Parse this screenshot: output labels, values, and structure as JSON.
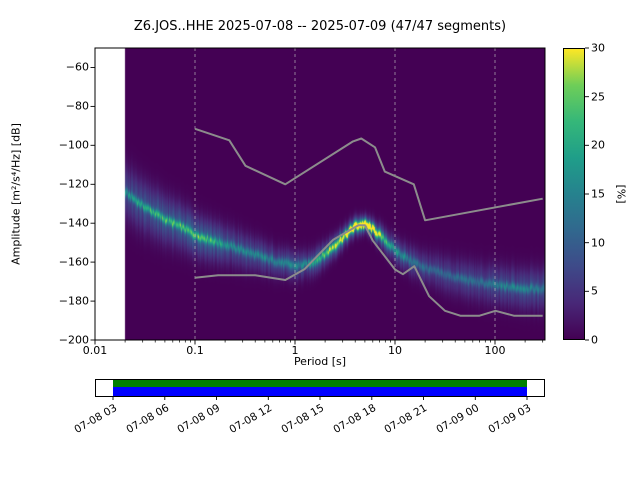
{
  "title": "Z6.JOS..HHE   2025-07-08 -- 2025-07-09  (47/47 segments)",
  "axes": {
    "xlabel": "Period [s]",
    "ylabel": "Amplitude [m²/s⁴/Hz] [dB]",
    "x_tick_labels": [
      "0.01",
      "0.1",
      "1",
      "10",
      "100"
    ],
    "y_tick_labels": [
      "−60",
      "−80",
      "−100",
      "−120",
      "−140",
      "−160",
      "−180",
      "−200"
    ]
  },
  "colorbar": {
    "label": "[%]",
    "tick_labels": [
      "0",
      "5",
      "10",
      "15",
      "20",
      "25",
      "30"
    ]
  },
  "timeline": {
    "labels": [
      "07-08 03",
      "07-08 06",
      "07-08 09",
      "07-08 12",
      "07-08 15",
      "07-08 18",
      "07-08 21",
      "07-09 00",
      "07-09 03"
    ],
    "coverage_start_frac": 0.04,
    "coverage_end_frac": 0.96,
    "color_top": "#008000",
    "color_bottom": "#0000ff"
  },
  "chart_data": {
    "type": "heatmap",
    "title": "Z6.JOS..HHE   2025-07-08 -- 2025-07-09  (47/47 segments)",
    "xlabel": "Period [s]",
    "ylabel": "Amplitude [m^2/s^4/Hz] [dB]",
    "xscale": "log",
    "xlim": [
      0.01,
      316
    ],
    "ylim": [
      -200,
      -50
    ],
    "x_major_ticks": [
      0.01,
      0.1,
      1,
      10,
      100
    ],
    "y_major_ticks": [
      -60,
      -80,
      -100,
      -120,
      -140,
      -160,
      -180,
      -200
    ],
    "grid_periods": [
      0.1,
      1,
      10,
      100
    ],
    "data_period_min": 0.02,
    "colorbar": {
      "label": "[%]",
      "min": 0,
      "max": 30,
      "ticks": [
        0,
        5,
        10,
        15,
        20,
        25,
        30
      ],
      "colormap": "viridis"
    },
    "psd_mode_curve_db": [
      [
        0.02,
        -124
      ],
      [
        0.03,
        -131
      ],
      [
        0.05,
        -138
      ],
      [
        0.08,
        -143
      ],
      [
        0.1,
        -146
      ],
      [
        0.15,
        -149
      ],
      [
        0.2,
        -151
      ],
      [
        0.3,
        -154
      ],
      [
        0.5,
        -158
      ],
      [
        0.7,
        -160
      ],
      [
        1.0,
        -162
      ],
      [
        1.4,
        -161
      ],
      [
        2.0,
        -156
      ],
      [
        2.8,
        -149
      ],
      [
        4.0,
        -141.5
      ],
      [
        5.0,
        -140.5
      ],
      [
        6.0,
        -143
      ],
      [
        8.0,
        -149
      ],
      [
        10,
        -154
      ],
      [
        14,
        -159
      ],
      [
        20,
        -163
      ],
      [
        30,
        -166
      ],
      [
        50,
        -169
      ],
      [
        80,
        -171
      ],
      [
        120,
        -172.5
      ],
      [
        200,
        -173.5
      ],
      [
        316,
        -174
      ]
    ],
    "psd_sigma_curve_db": [
      [
        0.02,
        9
      ],
      [
        0.05,
        8
      ],
      [
        0.1,
        7
      ],
      [
        0.3,
        6
      ],
      [
        0.7,
        5
      ],
      [
        1.5,
        4.5
      ],
      [
        3,
        3.5
      ],
      [
        5,
        3
      ],
      [
        8,
        4
      ],
      [
        15,
        5
      ],
      [
        30,
        6
      ],
      [
        80,
        6.5
      ],
      [
        316,
        7
      ]
    ],
    "psd_broad_peak_percent": [
      [
        0.02,
        7
      ],
      [
        0.05,
        9
      ],
      [
        0.1,
        10
      ],
      [
        0.3,
        8
      ],
      [
        0.7,
        7
      ],
      [
        1.5,
        8
      ],
      [
        3,
        12
      ],
      [
        4.5,
        14
      ],
      [
        6,
        12
      ],
      [
        10,
        8
      ],
      [
        20,
        6
      ],
      [
        50,
        6
      ],
      [
        120,
        7
      ],
      [
        316,
        7
      ]
    ],
    "psd_ridge_peak_percent": [
      [
        0.02,
        10
      ],
      [
        0.03,
        12
      ],
      [
        0.05,
        14
      ],
      [
        0.1,
        14
      ],
      [
        0.2,
        10
      ],
      [
        0.4,
        8
      ],
      [
        0.8,
        7
      ],
      [
        1.5,
        10
      ],
      [
        2.5,
        18
      ],
      [
        3.5,
        26
      ],
      [
        4.5,
        30
      ],
      [
        5.5,
        28
      ],
      [
        7,
        18
      ],
      [
        9,
        10
      ],
      [
        15,
        6
      ],
      [
        30,
        5
      ],
      [
        80,
        6
      ],
      [
        150,
        8
      ],
      [
        316,
        6
      ]
    ],
    "ridge_sigma_db": 1.4,
    "noise_models": {
      "nhnm": [
        [
          0.1,
          -91.5
        ],
        [
          0.22,
          -97.4
        ],
        [
          0.32,
          -110.5
        ],
        [
          0.8,
          -120.0
        ],
        [
          3.8,
          -98.0
        ],
        [
          4.6,
          -96.5
        ],
        [
          6.3,
          -101.0
        ],
        [
          7.9,
          -113.5
        ],
        [
          15.4,
          -120.0
        ],
        [
          20.0,
          -138.5
        ],
        [
          300,
          -127.4
        ]
      ],
      "nlnm": [
        [
          0.1,
          -168.0
        ],
        [
          0.17,
          -166.7
        ],
        [
          0.4,
          -166.7
        ],
        [
          0.8,
          -169.2
        ],
        [
          1.24,
          -163.7
        ],
        [
          2.4,
          -148.6
        ],
        [
          4.3,
          -141.1
        ],
        [
          5.0,
          -141.1
        ],
        [
          6.0,
          -149.0
        ],
        [
          10.0,
          -163.8
        ],
        [
          12.0,
          -166.2
        ],
        [
          15.6,
          -162.1
        ],
        [
          21.9,
          -177.5
        ],
        [
          31.6,
          -185.0
        ],
        [
          45.0,
          -187.5
        ],
        [
          70.0,
          -187.5
        ],
        [
          101.0,
          -185.0
        ],
        [
          154.0,
          -187.5
        ],
        [
          300,
          -187.5
        ]
      ]
    },
    "viridis_stops": [
      [
        68,
        1,
        84
      ],
      [
        72,
        40,
        120
      ],
      [
        62,
        74,
        137
      ],
      [
        49,
        104,
        142
      ],
      [
        38,
        130,
        142
      ],
      [
        31,
        158,
        137
      ],
      [
        53,
        183,
        121
      ],
      [
        110,
        206,
        88
      ],
      [
        253,
        231,
        37
      ]
    ],
    "background_no_data_color": "#ffffff",
    "noise_model_color": "#8c8c8c"
  }
}
